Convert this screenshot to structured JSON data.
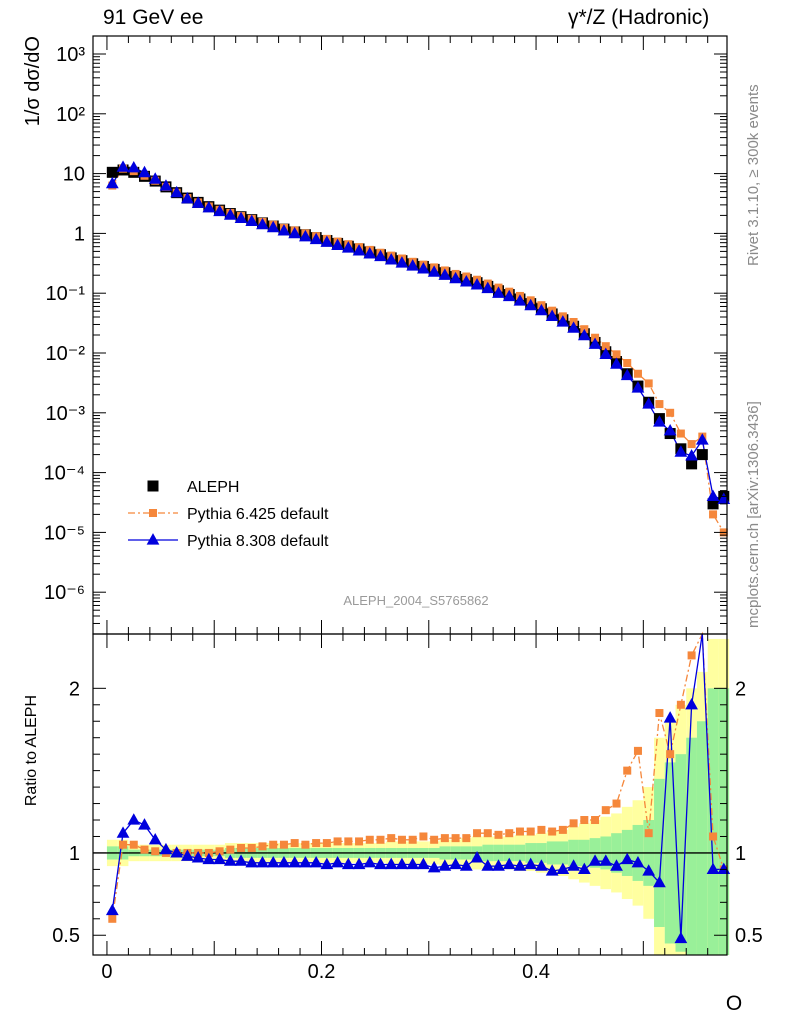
{
  "header": {
    "left": "91 GeV ee",
    "right": "γ*/Z (Hadronic)"
  },
  "side_labels": {
    "rivet": "Rivet 3.1.10, ≥ 300k events",
    "mcplots": "mcplots.cern.ch [arXiv:1306.3436]"
  },
  "watermark": "ALEPH_2004_S5765862",
  "colors": {
    "data": "#000000",
    "pythia6": "#f5873b",
    "pythia8": "#0000dd",
    "band_inner": "#99f099",
    "band_outer": "#ffffa0"
  },
  "chart_data": [
    {
      "type": "scatter",
      "panel": "main",
      "ylabel": "1/σ  dσ/dO",
      "yscale": "log",
      "ylim": [
        2e-07,
        2000
      ],
      "xlim": [
        -0.013,
        0.578
      ],
      "y_ticks": [
        {
          "value": 1000,
          "label": "10³"
        },
        {
          "value": 100,
          "label": "10²"
        },
        {
          "value": 10,
          "label": "10"
        },
        {
          "value": 1,
          "label": "1"
        },
        {
          "value": 0.1,
          "label": "10⁻¹"
        },
        {
          "value": 0.01,
          "label": "10⁻²"
        },
        {
          "value": 0.001,
          "label": "10⁻³"
        },
        {
          "value": 0.0001,
          "label": "10⁻⁴"
        },
        {
          "value": 1e-05,
          "label": "10⁻⁵"
        },
        {
          "value": 1e-06,
          "label": "10⁻⁶"
        }
      ],
      "legend_position": "middle-left",
      "series": [
        {
          "name": "ALEPH",
          "marker": "square",
          "x": [
            0.005,
            0.015,
            0.025,
            0.035,
            0.045,
            0.055,
            0.065,
            0.075,
            0.085,
            0.095,
            0.105,
            0.115,
            0.125,
            0.135,
            0.145,
            0.155,
            0.165,
            0.175,
            0.185,
            0.195,
            0.205,
            0.215,
            0.225,
            0.235,
            0.245,
            0.255,
            0.265,
            0.275,
            0.285,
            0.295,
            0.305,
            0.315,
            0.325,
            0.335,
            0.345,
            0.355,
            0.365,
            0.375,
            0.385,
            0.395,
            0.405,
            0.415,
            0.425,
            0.435,
            0.445,
            0.455,
            0.465,
            0.475,
            0.485,
            0.495,
            0.505,
            0.515,
            0.525,
            0.535,
            0.545,
            0.555,
            0.565,
            0.575
          ],
          "y": [
            10.5,
            11.5,
            10.5,
            9.0,
            7.5,
            6.0,
            4.8,
            3.9,
            3.3,
            2.8,
            2.45,
            2.15,
            1.9,
            1.7,
            1.5,
            1.33,
            1.18,
            1.06,
            0.95,
            0.85,
            0.76,
            0.68,
            0.61,
            0.55,
            0.49,
            0.44,
            0.39,
            0.35,
            0.31,
            0.28,
            0.25,
            0.22,
            0.19,
            0.17,
            0.15,
            0.13,
            0.11,
            0.095,
            0.08,
            0.067,
            0.055,
            0.045,
            0.036,
            0.028,
            0.021,
            0.015,
            0.0105,
            0.0072,
            0.0045,
            0.0028,
            0.0015,
            0.0008,
            0.00045,
            0.00025,
            0.00014,
            0.0002,
            3e-05,
            4e-05
          ]
        },
        {
          "name": "Pythia 6.425 default",
          "marker": "square",
          "line": "dash-dot",
          "x": [
            0.005,
            0.015,
            0.025,
            0.035,
            0.045,
            0.055,
            0.065,
            0.075,
            0.085,
            0.095,
            0.105,
            0.115,
            0.125,
            0.135,
            0.145,
            0.155,
            0.165,
            0.175,
            0.185,
            0.195,
            0.205,
            0.215,
            0.225,
            0.235,
            0.245,
            0.255,
            0.265,
            0.275,
            0.285,
            0.295,
            0.305,
            0.315,
            0.325,
            0.335,
            0.345,
            0.355,
            0.365,
            0.375,
            0.385,
            0.395,
            0.405,
            0.415,
            0.425,
            0.435,
            0.445,
            0.455,
            0.465,
            0.475,
            0.485,
            0.495,
            0.505,
            0.515,
            0.525,
            0.535,
            0.545,
            0.555,
            0.565,
            0.575
          ],
          "y": [
            6.3,
            12.1,
            11.0,
            9.2,
            7.6,
            6.0,
            4.8,
            3.9,
            3.3,
            2.82,
            2.48,
            2.2,
            1.95,
            1.75,
            1.56,
            1.4,
            1.24,
            1.12,
            1.0,
            0.9,
            0.81,
            0.73,
            0.66,
            0.59,
            0.53,
            0.475,
            0.425,
            0.38,
            0.335,
            0.3,
            0.27,
            0.24,
            0.21,
            0.19,
            0.168,
            0.145,
            0.124,
            0.106,
            0.09,
            0.076,
            0.063,
            0.051,
            0.041,
            0.033,
            0.025,
            0.018,
            0.013,
            0.0095,
            0.0068,
            0.0045,
            0.0031,
            0.0014,
            0.001,
            0.00045,
            0.0003,
            0.0004,
            2e-05,
            1e-05
          ]
        },
        {
          "name": "Pythia 8.308 default",
          "marker": "triangle",
          "line": "solid",
          "x": [
            0.005,
            0.015,
            0.025,
            0.035,
            0.045,
            0.055,
            0.065,
            0.075,
            0.085,
            0.095,
            0.105,
            0.115,
            0.125,
            0.135,
            0.145,
            0.155,
            0.165,
            0.175,
            0.185,
            0.195,
            0.205,
            0.215,
            0.225,
            0.235,
            0.245,
            0.255,
            0.265,
            0.275,
            0.285,
            0.295,
            0.305,
            0.315,
            0.325,
            0.335,
            0.345,
            0.355,
            0.365,
            0.375,
            0.385,
            0.395,
            0.405,
            0.415,
            0.425,
            0.435,
            0.445,
            0.455,
            0.465,
            0.475,
            0.485,
            0.495,
            0.505,
            0.515,
            0.525,
            0.535,
            0.545,
            0.555,
            0.565,
            0.575
          ],
          "y": [
            6.8,
            12.8,
            12.5,
            10.4,
            8.1,
            6.2,
            4.8,
            3.8,
            3.2,
            2.68,
            2.32,
            2.02,
            1.78,
            1.59,
            1.4,
            1.25,
            1.1,
            0.99,
            0.88,
            0.79,
            0.71,
            0.63,
            0.57,
            0.51,
            0.455,
            0.41,
            0.36,
            0.32,
            0.285,
            0.255,
            0.225,
            0.2,
            0.175,
            0.155,
            0.138,
            0.12,
            0.1,
            0.088,
            0.074,
            0.062,
            0.051,
            0.041,
            0.033,
            0.026,
            0.0195,
            0.014,
            0.0095,
            0.0065,
            0.0042,
            0.0026,
            0.0014,
            0.0007,
            0.0005,
            0.00022,
            0.00019,
            0.00035,
            4e-05,
            3.57e-05
          ]
        }
      ]
    },
    {
      "type": "line",
      "panel": "ratio",
      "ylabel": "Ratio to ALEPH",
      "xlabel": "O",
      "ylim": [
        0.38,
        2.33
      ],
      "xlim": [
        -0.013,
        0.578
      ],
      "x_ticks": [
        0,
        0.2,
        0.4
      ],
      "x_tick_labels": [
        "0",
        "0.2",
        "0.4"
      ],
      "y_ticks": [
        0.5,
        1,
        2
      ],
      "y_tick_labels": [
        "0.5",
        "1",
        "2"
      ],
      "band_inner_halfwidth": [
        0.04,
        0.04,
        0.02,
        0.02,
        0.02,
        0.02,
        0.02,
        0.02,
        0.02,
        0.02,
        0.02,
        0.03,
        0.03,
        0.03,
        0.03,
        0.03,
        0.03,
        0.03,
        0.03,
        0.03,
        0.03,
        0.03,
        0.03,
        0.03,
        0.03,
        0.03,
        0.03,
        0.03,
        0.03,
        0.03,
        0.03,
        0.04,
        0.04,
        0.04,
        0.04,
        0.05,
        0.05,
        0.05,
        0.05,
        0.06,
        0.06,
        0.07,
        0.07,
        0.08,
        0.08,
        0.09,
        0.1,
        0.12,
        0.14,
        0.17,
        0.2,
        0.45,
        0.55,
        0.6,
        0.7,
        0.8,
        1.0,
        1.0
      ],
      "band_outer_halfwidth": [
        0.08,
        0.08,
        0.05,
        0.05,
        0.05,
        0.05,
        0.05,
        0.05,
        0.05,
        0.05,
        0.05,
        0.06,
        0.06,
        0.06,
        0.06,
        0.06,
        0.06,
        0.06,
        0.06,
        0.06,
        0.06,
        0.06,
        0.06,
        0.06,
        0.06,
        0.06,
        0.07,
        0.07,
        0.07,
        0.07,
        0.07,
        0.08,
        0.08,
        0.09,
        0.1,
        0.1,
        0.1,
        0.1,
        0.11,
        0.11,
        0.12,
        0.13,
        0.14,
        0.16,
        0.18,
        0.2,
        0.22,
        0.24,
        0.28,
        0.32,
        0.4,
        0.7,
        0.8,
        0.9,
        1.0,
        1.1,
        1.3,
        1.3
      ],
      "series": [
        {
          "name": "Pythia 6.425 default",
          "x": [
            0.005,
            0.015,
            0.025,
            0.035,
            0.045,
            0.055,
            0.065,
            0.075,
            0.085,
            0.095,
            0.105,
            0.115,
            0.125,
            0.135,
            0.145,
            0.155,
            0.165,
            0.175,
            0.185,
            0.195,
            0.205,
            0.215,
            0.225,
            0.235,
            0.245,
            0.255,
            0.265,
            0.275,
            0.285,
            0.295,
            0.305,
            0.315,
            0.325,
            0.335,
            0.345,
            0.355,
            0.365,
            0.375,
            0.385,
            0.395,
            0.405,
            0.415,
            0.425,
            0.435,
            0.445,
            0.455,
            0.465,
            0.475,
            0.485,
            0.495,
            0.505,
            0.515,
            0.525,
            0.535,
            0.545,
            0.555,
            0.565,
            0.575
          ],
          "y": [
            0.6,
            1.05,
            1.05,
            1.02,
            1.01,
            1.0,
            1.0,
            1.0,
            1.0,
            1.0,
            1.01,
            1.02,
            1.03,
            1.03,
            1.04,
            1.05,
            1.05,
            1.06,
            1.05,
            1.06,
            1.06,
            1.07,
            1.07,
            1.07,
            1.08,
            1.08,
            1.09,
            1.08,
            1.08,
            1.1,
            1.08,
            1.09,
            1.09,
            1.09,
            1.12,
            1.12,
            1.11,
            1.12,
            1.13,
            1.13,
            1.14,
            1.13,
            1.14,
            1.18,
            1.2,
            1.2,
            1.26,
            1.3,
            1.5,
            1.62,
            1.12,
            1.85,
            1.6,
            1.9,
            2.2,
            2.5,
            1.1,
            0.9
          ]
        },
        {
          "name": "Pythia 8.308 default",
          "x": [
            0.005,
            0.015,
            0.025,
            0.035,
            0.045,
            0.055,
            0.065,
            0.075,
            0.085,
            0.095,
            0.105,
            0.115,
            0.125,
            0.135,
            0.145,
            0.155,
            0.165,
            0.175,
            0.185,
            0.195,
            0.205,
            0.215,
            0.225,
            0.235,
            0.245,
            0.255,
            0.265,
            0.275,
            0.285,
            0.295,
            0.305,
            0.315,
            0.325,
            0.335,
            0.345,
            0.355,
            0.365,
            0.375,
            0.385,
            0.395,
            0.405,
            0.415,
            0.425,
            0.435,
            0.445,
            0.455,
            0.465,
            0.475,
            0.485,
            0.495,
            0.505,
            0.515,
            0.525,
            0.535,
            0.545,
            0.555,
            0.565,
            0.575
          ],
          "y": [
            0.65,
            1.12,
            1.2,
            1.17,
            1.08,
            1.02,
            1.0,
            0.98,
            0.97,
            0.96,
            0.96,
            0.95,
            0.95,
            0.94,
            0.94,
            0.94,
            0.94,
            0.94,
            0.94,
            0.94,
            0.93,
            0.94,
            0.93,
            0.93,
            0.94,
            0.93,
            0.93,
            0.93,
            0.93,
            0.93,
            0.91,
            0.92,
            0.93,
            0.92,
            0.97,
            0.92,
            0.92,
            0.93,
            0.92,
            0.93,
            0.92,
            0.89,
            0.9,
            0.92,
            0.9,
            0.95,
            0.95,
            0.92,
            0.96,
            0.94,
            0.89,
            0.82,
            1.82,
            0.48,
            1.9,
            3.2,
            0.9,
            0.9
          ]
        }
      ]
    }
  ]
}
